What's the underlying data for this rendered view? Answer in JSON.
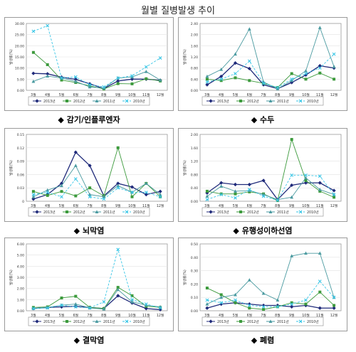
{
  "page_title": "월별 질병발생 추이",
  "legend_labels": [
    "2013년",
    "2012년",
    "2011년",
    "2010년"
  ],
  "series_colors": [
    "#1f2a7a",
    "#3c9a3c",
    "#4a9aa0",
    "#39c6e6"
  ],
  "chart_data": [
    {
      "type": "line",
      "title": "감기/인플루엔자",
      "ylabel": "발생률(%)",
      "categories": [
        "3월",
        "4월",
        "5월",
        "6월",
        "7월",
        "8월",
        "9월",
        "10월",
        "11월",
        "12월"
      ],
      "ylim": [
        0,
        30
      ],
      "yticks": [
        0,
        5,
        10,
        15,
        20,
        25,
        30
      ],
      "ytick_labels": [
        "0.00",
        "5.00",
        "10.00",
        "15.00",
        "20.00",
        "25.00",
        "30.00"
      ],
      "series": [
        {
          "name": "2013년",
          "values": [
            7.6,
            7.4,
            5.9,
            4.9,
            2.9,
            0.8,
            4.2,
            5.0,
            5.0,
            4.5
          ]
        },
        {
          "name": "2012년",
          "values": [
            17.0,
            11.5,
            4.6,
            3.5,
            2.0,
            0.6,
            3.0,
            2.9,
            5.2,
            4.2
          ]
        },
        {
          "name": "2011년",
          "values": [
            4.0,
            6.4,
            5.5,
            4.0,
            1.5,
            1.0,
            5.5,
            6.0,
            8.4,
            4.6
          ]
        },
        {
          "name": "2010년",
          "values": [
            26.5,
            29.0,
            5.5,
            6.0,
            2.5,
            1.5,
            5.5,
            6.5,
            10.5,
            14.5
          ]
        }
      ]
    },
    {
      "type": "line",
      "title": "수두",
      "ylabel": "발생률(%)",
      "categories": [
        "3월",
        "4월",
        "5월",
        "6월",
        "7월",
        "8월",
        "9월",
        "10월",
        "11월",
        "12월"
      ],
      "ylim": [
        0,
        2.4
      ],
      "yticks": [
        0,
        0.4,
        0.8,
        1.2,
        1.6,
        2.0,
        2.4
      ],
      "ytick_labels": [
        "0.00",
        "0.40",
        "0.80",
        "1.20",
        "1.60",
        "2.00",
        "2.40"
      ],
      "series": [
        {
          "name": "2013년",
          "values": [
            0.2,
            0.5,
            0.98,
            0.78,
            0.2,
            0.06,
            0.28,
            0.55,
            0.88,
            0.8
          ]
        },
        {
          "name": "2012년",
          "values": [
            0.4,
            0.35,
            0.45,
            0.35,
            0.25,
            0.1,
            0.6,
            0.4,
            0.62,
            0.4
          ]
        },
        {
          "name": "2011년",
          "values": [
            0.5,
            0.75,
            1.3,
            2.2,
            0.3,
            0.05,
            0.35,
            0.7,
            2.25,
            0.85
          ]
        },
        {
          "name": "2010년",
          "values": [
            0.3,
            0.4,
            0.6,
            1.05,
            0.25,
            0.1,
            0.4,
            0.6,
            0.8,
            1.3
          ]
        }
      ]
    },
    {
      "type": "line",
      "title": "뇌막염",
      "ylabel": "발생률(%)",
      "categories": [
        "3월",
        "4월",
        "5월",
        "6월",
        "7월",
        "8월",
        "9월",
        "10월",
        "11월",
        "12월"
      ],
      "ylim": [
        0,
        0.15
      ],
      "yticks": [
        0,
        0.03,
        0.06,
        0.09,
        0.12,
        0.15
      ],
      "ytick_labels": [
        "0",
        "0.03",
        "0.06",
        "0.09",
        "0.12",
        "0.15"
      ],
      "series": [
        {
          "name": "2013년",
          "values": [
            0.005,
            0.015,
            0.04,
            0.11,
            0.08,
            0.012,
            0.04,
            0.032,
            0.015,
            0.022
          ]
        },
        {
          "name": "2012년",
          "values": [
            0.022,
            0.013,
            0.022,
            0.012,
            0.03,
            0.012,
            0.12,
            0.01,
            0.04,
            0.01
          ]
        },
        {
          "name": "2011년",
          "values": [
            0.01,
            0.025,
            0.035,
            0.08,
            0.015,
            0.01,
            0.035,
            0.02,
            0.04,
            0.015
          ]
        },
        {
          "name": "2010년",
          "values": [
            0.015,
            0.02,
            0.01,
            0.05,
            0.01,
            0.005,
            0.03,
            0.02,
            0.02,
            0.01
          ]
        }
      ]
    },
    {
      "type": "line",
      "title": "유행성이하선염",
      "ylabel": "발생률(%)",
      "categories": [
        "3월",
        "4월",
        "5월",
        "6월",
        "7월",
        "8월",
        "9월",
        "10월",
        "11월",
        "12월"
      ],
      "ylim": [
        0,
        2.0
      ],
      "yticks": [
        0,
        0.4,
        0.8,
        1.2,
        1.6,
        2.0
      ],
      "ytick_labels": [
        "0.00",
        "0.40",
        "0.80",
        "1.20",
        "1.60",
        "2.00"
      ],
      "series": [
        {
          "name": "2013년",
          "values": [
            0.25,
            0.55,
            0.5,
            0.5,
            0.62,
            0.05,
            0.48,
            0.55,
            0.55,
            0.32
          ]
        },
        {
          "name": "2012년",
          "values": [
            0.3,
            0.22,
            0.22,
            0.28,
            0.22,
            0.02,
            1.85,
            0.62,
            0.3,
            0.12
          ]
        },
        {
          "name": "2011년",
          "values": [
            0.15,
            0.45,
            0.3,
            0.32,
            0.2,
            0.05,
            0.12,
            0.7,
            0.35,
            0.2
          ]
        },
        {
          "name": "2010년",
          "values": [
            0.05,
            0.2,
            0.1,
            0.35,
            0.15,
            0.03,
            0.78,
            0.78,
            0.75,
            0.2
          ]
        }
      ]
    },
    {
      "type": "line",
      "title": "결막염",
      "ylabel": "발생률(%)",
      "categories": [
        "3월",
        "4월",
        "5월",
        "6월",
        "7월",
        "8월",
        "9월",
        "10월",
        "11월",
        "12월"
      ],
      "ylim": [
        0,
        6.0
      ],
      "yticks": [
        0,
        1,
        2,
        3,
        4,
        5,
        6
      ],
      "ytick_labels": [
        "0.00",
        "1.00",
        "2.00",
        "3.00",
        "4.00",
        "5.00",
        "6.00"
      ],
      "series": [
        {
          "name": "2013년",
          "values": [
            0.2,
            0.3,
            0.35,
            0.4,
            0.3,
            0.2,
            1.35,
            0.7,
            0.2,
            0.1
          ]
        },
        {
          "name": "2012년",
          "values": [
            0.3,
            0.35,
            1.15,
            1.3,
            0.3,
            0.2,
            2.1,
            1.35,
            0.4,
            0.3
          ]
        },
        {
          "name": "2011년",
          "values": [
            0.2,
            0.3,
            0.5,
            0.6,
            0.25,
            0.15,
            1.9,
            0.8,
            0.5,
            0.35
          ]
        },
        {
          "name": "2010년",
          "values": [
            0.2,
            0.25,
            0.5,
            0.35,
            0.25,
            0.8,
            5.5,
            1.0,
            0.6,
            0.25
          ]
        }
      ]
    },
    {
      "type": "line",
      "title": "폐렴",
      "ylabel": "발생률(%)",
      "categories": [
        "3월",
        "4월",
        "5월",
        "6월",
        "7월",
        "8월",
        "9월",
        "10월",
        "11월",
        "12월"
      ],
      "ylim": [
        0,
        0.5
      ],
      "yticks": [
        0,
        0.1,
        0.2,
        0.3,
        0.4,
        0.5
      ],
      "ytick_labels": [
        "0.00",
        "0.10",
        "0.20",
        "0.30",
        "0.40",
        "0.50"
      ],
      "series": [
        {
          "name": "2013년",
          "values": [
            0.02,
            0.05,
            0.06,
            0.05,
            0.04,
            0.04,
            0.03,
            0.04,
            0.02,
            0.02
          ]
        },
        {
          "name": "2012년",
          "values": [
            0.17,
            0.12,
            0.06,
            0.02,
            0.01,
            0.03,
            0.06,
            0.05,
            0.14,
            0.04
          ]
        },
        {
          "name": "2011년",
          "values": [
            0.05,
            0.1,
            0.12,
            0.23,
            0.13,
            0.08,
            0.41,
            0.43,
            0.43,
            0.1
          ]
        },
        {
          "name": "2010년",
          "values": [
            0.08,
            0.06,
            0.08,
            0.04,
            0.03,
            0.03,
            0.05,
            0.08,
            0.22,
            0.1
          ]
        }
      ]
    }
  ]
}
